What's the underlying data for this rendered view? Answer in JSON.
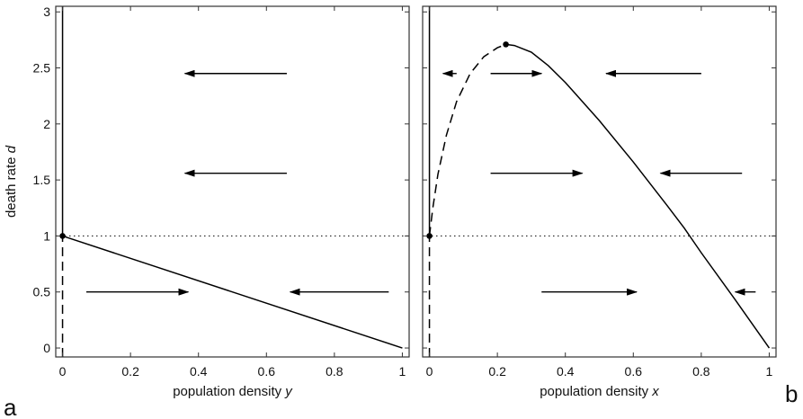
{
  "chart_data": [
    {
      "type": "line",
      "panel_label": "a",
      "xlabel_text": "population density ",
      "xlabel_var": "y",
      "ylabel_text": "death rate ",
      "ylabel_var": "d",
      "xlim": [
        -0.02,
        1.02
      ],
      "ylim": [
        -0.08,
        3.05
      ],
      "xticks": [
        0,
        0.2,
        0.4,
        0.6,
        0.8,
        1
      ],
      "xtick_labels": [
        "0",
        "0.2",
        "0.4",
        "0.6",
        "0.8",
        "1"
      ],
      "yticks": [
        0,
        0.5,
        1,
        1.5,
        2,
        2.5,
        3
      ],
      "ytick_labels": [
        "0",
        "0.5",
        "1",
        "1.5",
        "2",
        "2.5",
        "3"
      ],
      "grid": false,
      "reference_line": {
        "y": 1,
        "style": "dotted"
      },
      "series": [
        {
          "style": "solid",
          "points": [
            [
              0,
              1
            ],
            [
              0,
              3.05
            ]
          ]
        },
        {
          "style": "dashed",
          "points": [
            [
              0,
              -0.08
            ],
            [
              0,
              1
            ]
          ]
        },
        {
          "style": "solid",
          "points": [
            [
              0,
              1
            ],
            [
              1,
              0
            ]
          ]
        }
      ],
      "markers": [
        [
          0,
          1
        ]
      ],
      "flow_arrows": [
        {
          "from": [
            0.66,
            2.45
          ],
          "to": [
            0.36,
            2.45
          ]
        },
        {
          "from": [
            0.66,
            1.56
          ],
          "to": [
            0.36,
            1.56
          ]
        },
        {
          "from": [
            0.07,
            0.5
          ],
          "to": [
            0.37,
            0.5
          ]
        },
        {
          "from": [
            0.96,
            0.5
          ],
          "to": [
            0.67,
            0.5
          ]
        }
      ]
    },
    {
      "type": "line",
      "panel_label": "b",
      "xlabel_text": "population density ",
      "xlabel_var": "x",
      "xlim": [
        -0.02,
        1.02
      ],
      "ylim": [
        -0.08,
        3.05
      ],
      "xticks": [
        0,
        0.2,
        0.4,
        0.6,
        0.8,
        1
      ],
      "xtick_labels": [
        "0",
        "0.2",
        "0.4",
        "0.6",
        "0.8",
        "1"
      ],
      "yticks": [
        0,
        0.5,
        1,
        1.5,
        2,
        2.5,
        3
      ],
      "grid": false,
      "reference_line": {
        "y": 1,
        "style": "dotted"
      },
      "series": [
        {
          "style": "solid",
          "points": [
            [
              0,
              1
            ],
            [
              0,
              3.05
            ]
          ]
        },
        {
          "style": "dashed",
          "points": [
            [
              0,
              -0.08
            ],
            [
              0,
              1
            ]
          ]
        },
        {
          "style": "dashed",
          "points": [
            [
              0.0,
              1.0
            ],
            [
              0.01,
              1.25
            ],
            [
              0.025,
              1.55
            ],
            [
              0.05,
              1.9
            ],
            [
              0.08,
              2.2
            ],
            [
              0.12,
              2.45
            ],
            [
              0.16,
              2.6
            ],
            [
              0.2,
              2.68
            ],
            [
              0.225,
              2.71
            ]
          ]
        },
        {
          "style": "solid",
          "points": [
            [
              0.225,
              2.71
            ],
            [
              0.25,
              2.7
            ],
            [
              0.3,
              2.64
            ],
            [
              0.35,
              2.52
            ],
            [
              0.4,
              2.37
            ],
            [
              0.5,
              2.03
            ],
            [
              0.6,
              1.66
            ],
            [
              0.7,
              1.27
            ],
            [
              0.75,
              1.07
            ],
            [
              0.8,
              0.85
            ],
            [
              0.9,
              0.43
            ],
            [
              1,
              0
            ]
          ]
        }
      ],
      "markers": [
        [
          0,
          1
        ],
        [
          0.225,
          2.71
        ]
      ],
      "flow_arrows": [
        {
          "from": [
            0.08,
            2.45
          ],
          "to": [
            0.04,
            2.45
          ]
        },
        {
          "from": [
            0.18,
            2.45
          ],
          "to": [
            0.33,
            2.45
          ]
        },
        {
          "from": [
            0.8,
            2.45
          ],
          "to": [
            0.52,
            2.45
          ]
        },
        {
          "from": [
            0.18,
            1.56
          ],
          "to": [
            0.45,
            1.56
          ]
        },
        {
          "from": [
            0.92,
            1.56
          ],
          "to": [
            0.68,
            1.56
          ]
        },
        {
          "from": [
            0.33,
            0.5
          ],
          "to": [
            0.61,
            0.5
          ]
        },
        {
          "from": [
            0.96,
            0.5
          ],
          "to": [
            0.9,
            0.5
          ]
        }
      ]
    }
  ]
}
